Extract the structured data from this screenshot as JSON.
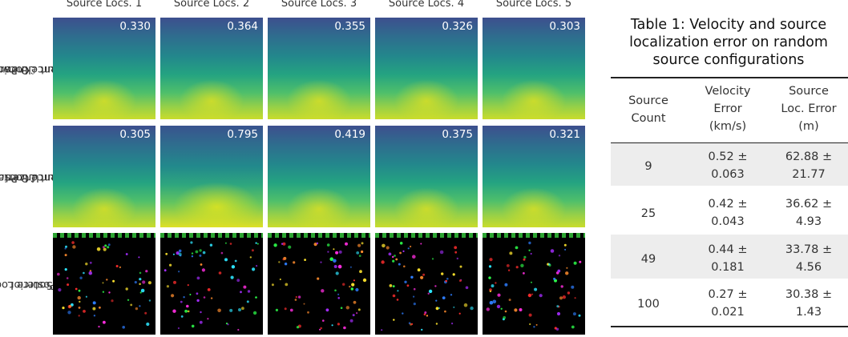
{
  "columns": [
    "Source Locs. 1",
    "Source Locs. 2",
    "Source Locs. 3",
    "Source Locs. 4",
    "Source Locs. 5"
  ],
  "rows": [
    {
      "label_lines": [
        "Known",
        "Source Locs. w/",
        "Gradient ℒΘ Prior"
      ]
    },
    {
      "label_lines": [
        "Uncertain",
        "Source Locs. w/",
        "Gradient ℒΘ Prior"
      ]
    },
    {
      "label_lines": [
        "Source Locs.",
        "Posterior"
      ]
    }
  ],
  "scores": {
    "known": [
      "0.330",
      "0.364",
      "0.355",
      "0.326",
      "0.303"
    ],
    "uncertain": [
      "0.305",
      "0.795",
      "0.419",
      "0.375",
      "0.321"
    ]
  },
  "table": {
    "title_lines": [
      "Table 1: Velocity and source",
      "localization error on random",
      "source configurations"
    ],
    "headers": [
      [
        "Source",
        "Count"
      ],
      [
        "Velocity",
        "Error",
        "(km/s)"
      ],
      [
        "Source",
        "Loc. Error",
        "(m)"
      ]
    ],
    "rows": [
      {
        "count": "9",
        "vel": [
          "0.52 ±",
          "0.063"
        ],
        "loc": [
          "62.88 ±",
          "21.77"
        ]
      },
      {
        "count": "25",
        "vel": [
          "0.42 ±",
          "0.043"
        ],
        "loc": [
          "36.62 ±",
          "4.93"
        ]
      },
      {
        "count": "49",
        "vel": [
          "0.44 ±",
          "0.181"
        ],
        "loc": [
          "33.78 ±",
          "4.56"
        ]
      },
      {
        "count": "100",
        "vel": [
          "0.27 ±",
          "0.021"
        ],
        "loc": [
          "30.38 ±",
          "1.43"
        ]
      }
    ]
  }
}
